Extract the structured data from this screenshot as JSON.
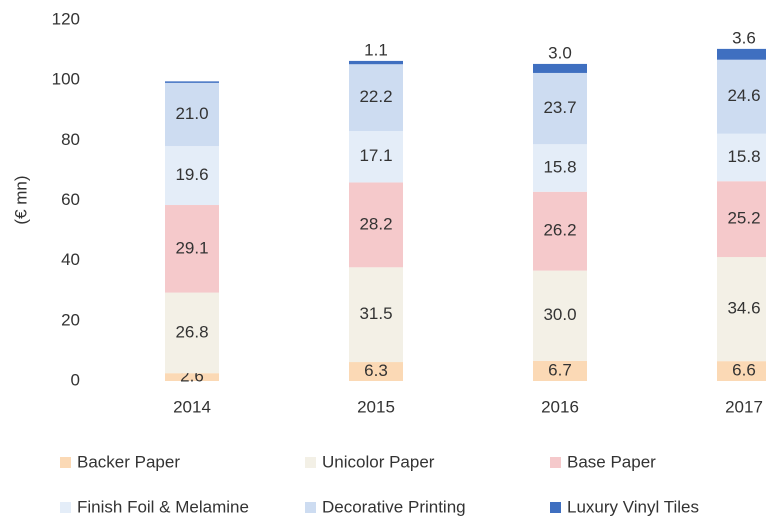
{
  "chart_data": {
    "type": "stacked_bar",
    "y_label": "(€ mn)",
    "categories": [
      "2014",
      "2015",
      "2016",
      "2017"
    ],
    "ylim": [
      0,
      120
    ],
    "yticks": [
      0,
      20,
      40,
      60,
      80,
      100,
      120
    ],
    "grid": false,
    "legend": "bottom",
    "series": [
      {
        "name": "Backer Paper",
        "color": "#fbd9b5",
        "values": [
          2.6,
          6.3,
          6.7,
          6.6
        ]
      },
      {
        "name": "Unicolor Paper",
        "color": "#f3f0e6",
        "values": [
          26.8,
          31.5,
          30.0,
          34.6
        ],
        "value_labels": [
          "26.8",
          "31.5",
          "30.0",
          "34.6"
        ]
      },
      {
        "name": "Base Paper",
        "color": "#f5c9cb",
        "values": [
          29.1,
          28.2,
          26.2,
          25.2
        ]
      },
      {
        "name": "Finish Foil & Melamine",
        "color": "#e4edf8",
        "values": [
          19.6,
          17.1,
          15.8,
          15.8
        ]
      },
      {
        "name": "Decorative Printing",
        "color": "#cddcf1",
        "values": [
          21.0,
          22.2,
          23.7,
          24.6
        ],
        "value_labels": [
          "21.0",
          "22.2",
          "23.7",
          "24.6"
        ]
      },
      {
        "name": "Luxury Vinyl Tiles",
        "color": "#3f6fc0",
        "values": [
          0.5,
          1.1,
          3.0,
          3.6
        ],
        "value_labels": [
          null,
          "1.1",
          "3.0",
          "3.6"
        ]
      }
    ]
  }
}
